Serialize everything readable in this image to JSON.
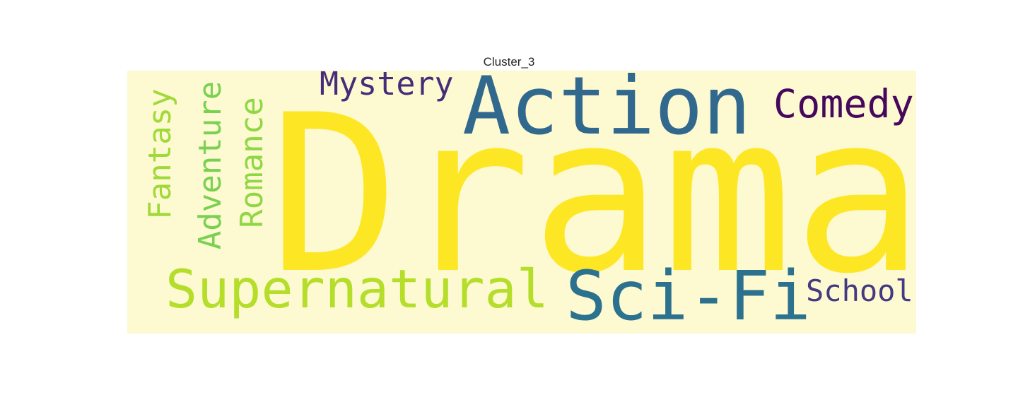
{
  "figure": {
    "title": "Cluster_3"
  },
  "colors": {
    "background": "#fdf9d0",
    "yellow": "#fde725",
    "yellow_green": "#b5de2b",
    "green": "#7ad151",
    "teal": "#2a788e",
    "blue": "#31688e",
    "indigo": "#443983",
    "purple": "#440154"
  },
  "words": [
    {
      "text": "Drama",
      "rank": 1,
      "color": "#fde725"
    },
    {
      "text": "Action",
      "rank": 2,
      "color": "#31688e"
    },
    {
      "text": "Sci-Fi",
      "rank": 3,
      "color": "#2c728e"
    },
    {
      "text": "Supernatural",
      "rank": 4,
      "color": "#b5de2b"
    },
    {
      "text": "Comedy",
      "rank": 5,
      "color": "#46085c"
    },
    {
      "text": "Adventure",
      "rank": 6,
      "color": "#7ad151"
    },
    {
      "text": "Fantasy",
      "rank": 7,
      "color": "#a0da39"
    },
    {
      "text": "Romance",
      "rank": 8,
      "color": "#8fd744"
    },
    {
      "text": "Mystery",
      "rank": 9,
      "color": "#472c7a"
    },
    {
      "text": "School",
      "rank": 10,
      "color": "#443983"
    }
  ]
}
